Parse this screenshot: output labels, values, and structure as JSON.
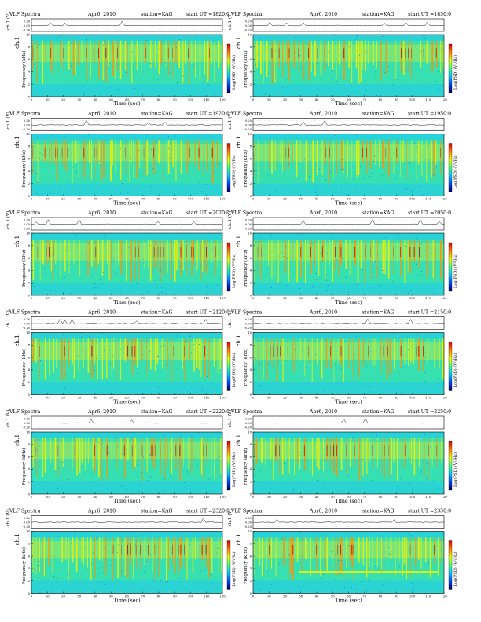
{
  "page_title": "",
  "header": {
    "prefix": "VLF Spectra",
    "date": "Apr6, 2010",
    "station": "station=KAG",
    "start_prefix": "start  UT  ="
  },
  "labels": {
    "ch1_small": "ch.1 (V)",
    "ch1_main": "ch.1",
    "freq": "Frequency  (kHz)",
    "time": "Time  (sec)",
    "colorbar": "Log(PSD) (V²/Hz)"
  },
  "chart_data": [
    {
      "type": "heatmap",
      "panel": 1,
      "title": "VLF Spectra",
      "date": "Apr6, 2010",
      "station": "KAG",
      "start_ut": "1820:0",
      "xlabel": "Time (sec)",
      "ylabel": "Frequency (kHz)",
      "xlim": [
        0,
        120
      ],
      "ylim": [
        0,
        10
      ],
      "x_ticks": [
        0,
        10,
        20,
        30,
        40,
        50,
        60,
        70,
        80,
        90,
        100,
        110,
        120
      ],
      "y_ticks": [
        0,
        2,
        4,
        6,
        8,
        10
      ],
      "strip": {
        "ylabel": "ch.1 (V)",
        "ticks": [
          "0.20",
          "0.00",
          "-0.20"
        ]
      },
      "colorbar": {
        "label": "Log(PSD) (V²/Hz)",
        "colors": [
          "#00005a",
          "#0040ff",
          "#00c8ff",
          "#40ff80",
          "#e8ff00",
          "#ff8000",
          "#e00000"
        ]
      }
    },
    {
      "type": "heatmap",
      "panel": 2,
      "title": "VLF Spectra",
      "date": "Apr6, 2010",
      "station": "KAG",
      "start_ut": "1850:0",
      "xlabel": "Time (sec)",
      "ylabel": "Frequency (kHz)",
      "xlim": [
        0,
        120
      ],
      "ylim": [
        0,
        10
      ],
      "x_ticks": [
        0,
        10,
        20,
        30,
        40,
        50,
        60,
        70,
        80,
        90,
        100,
        110,
        120
      ],
      "y_ticks": [
        0,
        2,
        4,
        6,
        8,
        10
      ],
      "strip": {
        "ylabel": "ch.1 (V)",
        "ticks": [
          "0.20",
          "0.00",
          "-0.20"
        ]
      },
      "colorbar": {
        "label": "Log(PSD) (V²/Hz)",
        "colors": [
          "#00005a",
          "#0040ff",
          "#00c8ff",
          "#40ff80",
          "#e8ff00",
          "#ff8000",
          "#e00000"
        ]
      }
    },
    {
      "type": "heatmap",
      "panel": 3,
      "title": "VLF Spectra",
      "date": "Apr6, 2010",
      "station": "KAG",
      "start_ut": "1920:0",
      "xlabel": "Time (sec)",
      "ylabel": "Frequency (kHz)",
      "xlim": [
        0,
        120
      ],
      "ylim": [
        0,
        10
      ],
      "x_ticks": [
        0,
        10,
        20,
        30,
        40,
        50,
        60,
        70,
        80,
        90,
        100,
        110,
        120
      ],
      "y_ticks": [
        0,
        2,
        4,
        6,
        8,
        10
      ],
      "strip": {
        "ylabel": "ch.1 (V)",
        "ticks": [
          "0.20",
          "0.00",
          "-0.20"
        ]
      },
      "colorbar": {
        "label": "Log(PSD) (V²/Hz)",
        "colors": [
          "#00005a",
          "#0040ff",
          "#00c8ff",
          "#40ff80",
          "#e8ff00",
          "#ff8000",
          "#e00000"
        ]
      }
    },
    {
      "type": "heatmap",
      "panel": 4,
      "title": "VLF Spectra",
      "date": "Apr6, 2010",
      "station": "KAG",
      "start_ut": "1950:0",
      "xlabel": "Time (sec)",
      "ylabel": "Frequency (kHz)",
      "xlim": [
        0,
        120
      ],
      "ylim": [
        0,
        10
      ],
      "x_ticks": [
        0,
        10,
        20,
        30,
        40,
        50,
        60,
        70,
        80,
        90,
        100,
        110,
        120
      ],
      "y_ticks": [
        0,
        2,
        4,
        6,
        8,
        10
      ],
      "strip": {
        "ylabel": "ch.1 (V)",
        "ticks": [
          "0.20",
          "0.00",
          "-0.20"
        ]
      },
      "colorbar": {
        "label": "Log(PSD) (V²/Hz)",
        "colors": [
          "#00005a",
          "#0040ff",
          "#00c8ff",
          "#40ff80",
          "#e8ff00",
          "#ff8000",
          "#e00000"
        ]
      }
    },
    {
      "type": "heatmap",
      "panel": 5,
      "title": "VLF Spectra",
      "date": "Apr6, 2010",
      "station": "KAG",
      "start_ut": "2020:0",
      "xlabel": "Time (sec)",
      "ylabel": "Frequency (kHz)",
      "xlim": [
        0,
        120
      ],
      "ylim": [
        0,
        10
      ],
      "x_ticks": [
        0,
        10,
        20,
        30,
        40,
        50,
        60,
        70,
        80,
        90,
        100,
        110,
        120
      ],
      "y_ticks": [
        0,
        2,
        4,
        6,
        8,
        10
      ],
      "strip": {
        "ylabel": "ch.1 (V)",
        "ticks": [
          "0.20",
          "0.00",
          "-0.20"
        ]
      },
      "colorbar": {
        "label": "Log(PSD) (V²/Hz)",
        "colors": [
          "#00005a",
          "#0040ff",
          "#00c8ff",
          "#40ff80",
          "#e8ff00",
          "#ff8000",
          "#e00000"
        ]
      }
    },
    {
      "type": "heatmap",
      "panel": 6,
      "title": "VLF Spectra",
      "date": "Apr6, 2010",
      "station": "KAG",
      "start_ut": "2050:0",
      "xlabel": "Time (sec)",
      "ylabel": "Frequency (kHz)",
      "xlim": [
        0,
        120
      ],
      "ylim": [
        0,
        10
      ],
      "x_ticks": [
        0,
        10,
        20,
        30,
        40,
        50,
        60,
        70,
        80,
        90,
        100,
        110,
        120
      ],
      "y_ticks": [
        0,
        2,
        4,
        6,
        8,
        10
      ],
      "strip": {
        "ylabel": "ch.1 (V)",
        "ticks": [
          "0.20",
          "0.00",
          "-0.20"
        ]
      },
      "colorbar": {
        "label": "Log(PSD) (V²/Hz)",
        "colors": [
          "#00005a",
          "#0040ff",
          "#00c8ff",
          "#40ff80",
          "#e8ff00",
          "#ff8000",
          "#e00000"
        ]
      }
    },
    {
      "type": "heatmap",
      "panel": 7,
      "title": "VLF Spectra",
      "date": "Apr6, 2010",
      "station": "KAG",
      "start_ut": "2120:0",
      "xlabel": "Time (sec)",
      "ylabel": "Frequency (kHz)",
      "xlim": [
        0,
        120
      ],
      "ylim": [
        0,
        10
      ],
      "x_ticks": [
        0,
        10,
        20,
        30,
        40,
        50,
        60,
        70,
        80,
        90,
        100,
        110,
        120
      ],
      "y_ticks": [
        0,
        2,
        4,
        6,
        8,
        10
      ],
      "strip": {
        "ylabel": "ch.1 (V)",
        "ticks": [
          "0.20",
          "0.00",
          "-0.20"
        ]
      },
      "colorbar": {
        "label": "Log(PSD) (V²/Hz)",
        "colors": [
          "#00005a",
          "#0040ff",
          "#00c8ff",
          "#40ff80",
          "#e8ff00",
          "#ff8000",
          "#e00000"
        ]
      }
    },
    {
      "type": "heatmap",
      "panel": 8,
      "title": "VLF Spectra",
      "date": "Apr6, 2010",
      "station": "KAG",
      "start_ut": "2150:0",
      "xlabel": "Time (sec)",
      "ylabel": "Frequency (kHz)",
      "xlim": [
        0,
        120
      ],
      "ylim": [
        0,
        10
      ],
      "x_ticks": [
        0,
        10,
        20,
        30,
        40,
        50,
        60,
        70,
        80,
        90,
        100,
        110,
        120
      ],
      "y_ticks": [
        0,
        2,
        4,
        6,
        8,
        10
      ],
      "strip": {
        "ylabel": "ch.1 (V)",
        "ticks": [
          "0.20",
          "0.00",
          "-0.20"
        ]
      },
      "colorbar": {
        "label": "Log(PSD) (V²/Hz)",
        "colors": [
          "#00005a",
          "#0040ff",
          "#00c8ff",
          "#40ff80",
          "#e8ff00",
          "#ff8000",
          "#e00000"
        ]
      }
    },
    {
      "type": "heatmap",
      "panel": 9,
      "title": "VLF Spectra",
      "date": "Apr6, 2010",
      "station": "KAG",
      "start_ut": "2220:0",
      "xlabel": "Time (sec)",
      "ylabel": "Frequency (kHz)",
      "xlim": [
        0,
        120
      ],
      "ylim": [
        0,
        10
      ],
      "x_ticks": [
        0,
        10,
        20,
        30,
        40,
        50,
        60,
        70,
        80,
        90,
        100,
        110,
        120
      ],
      "y_ticks": [
        0,
        2,
        4,
        6,
        8,
        10
      ],
      "strip": {
        "ylabel": "ch.1 (V)",
        "ticks": [
          "0.20",
          "0.00",
          "-0.20"
        ]
      },
      "colorbar": {
        "label": "Log(PSD) (V²/Hz)",
        "colors": [
          "#00005a",
          "#0040ff",
          "#00c8ff",
          "#40ff80",
          "#e8ff00",
          "#ff8000",
          "#e00000"
        ]
      }
    },
    {
      "type": "heatmap",
      "panel": 10,
      "title": "VLF Spectra",
      "date": "Apr6, 2010",
      "station": "KAG",
      "start_ut": "2250:0",
      "xlabel": "Time (sec)",
      "ylabel": "Frequency (kHz)",
      "xlim": [
        0,
        120
      ],
      "ylim": [
        0,
        10
      ],
      "x_ticks": [
        0,
        10,
        20,
        30,
        40,
        50,
        60,
        70,
        80,
        90,
        100,
        110,
        120
      ],
      "y_ticks": [
        0,
        2,
        4,
        6,
        8,
        10
      ],
      "strip": {
        "ylabel": "ch.1 (V)",
        "ticks": [
          "0.20",
          "0.00",
          "-0.20"
        ]
      },
      "colorbar": {
        "label": "Log(PSD) (V²/Hz)",
        "colors": [
          "#00005a",
          "#0040ff",
          "#00c8ff",
          "#40ff80",
          "#e8ff00",
          "#ff8000",
          "#e00000"
        ]
      }
    },
    {
      "type": "heatmap",
      "panel": 11,
      "title": "VLF Spectra",
      "date": "Apr6, 2010",
      "station": "KAG",
      "start_ut": "2320:0",
      "xlabel": "Time (sec)",
      "ylabel": "Frequency (kHz)",
      "xlim": [
        0,
        120
      ],
      "ylim": [
        0,
        10
      ],
      "x_ticks": [
        0,
        10,
        20,
        30,
        40,
        50,
        60,
        70,
        80,
        90,
        100,
        110,
        120
      ],
      "y_ticks": [
        0,
        2,
        4,
        6,
        8,
        10
      ],
      "strip": {
        "ylabel": "ch.1 (V)",
        "ticks": [
          "0.20",
          "0.00",
          "-0.20"
        ]
      },
      "colorbar": {
        "label": "Log(PSD) (V²/Hz)",
        "colors": [
          "#00005a",
          "#0040ff",
          "#00c8ff",
          "#40ff80",
          "#e8ff00",
          "#ff8000",
          "#e00000"
        ]
      }
    },
    {
      "type": "heatmap",
      "panel": 12,
      "title": "VLF Spectra",
      "date": "Apr6, 2010",
      "station": "KAG",
      "start_ut": "2350:0",
      "xlabel": "Time (sec)",
      "ylabel": "Frequency (kHz)",
      "xlim": [
        0,
        120
      ],
      "ylim": [
        0,
        10
      ],
      "x_ticks": [
        0,
        10,
        20,
        30,
        40,
        50,
        60,
        70,
        80,
        90,
        100,
        110,
        120
      ],
      "y_ticks": [
        0,
        2,
        4,
        6,
        8,
        10
      ],
      "strip": {
        "ylabel": "ch.1 (V)",
        "ticks": [
          "0.20",
          "0.00",
          "-0.20"
        ]
      },
      "colorbar": {
        "label": "Log(PSD) (V²/Hz)",
        "colors": [
          "#00005a",
          "#0040ff",
          "#00c8ff",
          "#40ff80",
          "#e8ff00",
          "#ff8000",
          "#e00000"
        ]
      }
    }
  ]
}
